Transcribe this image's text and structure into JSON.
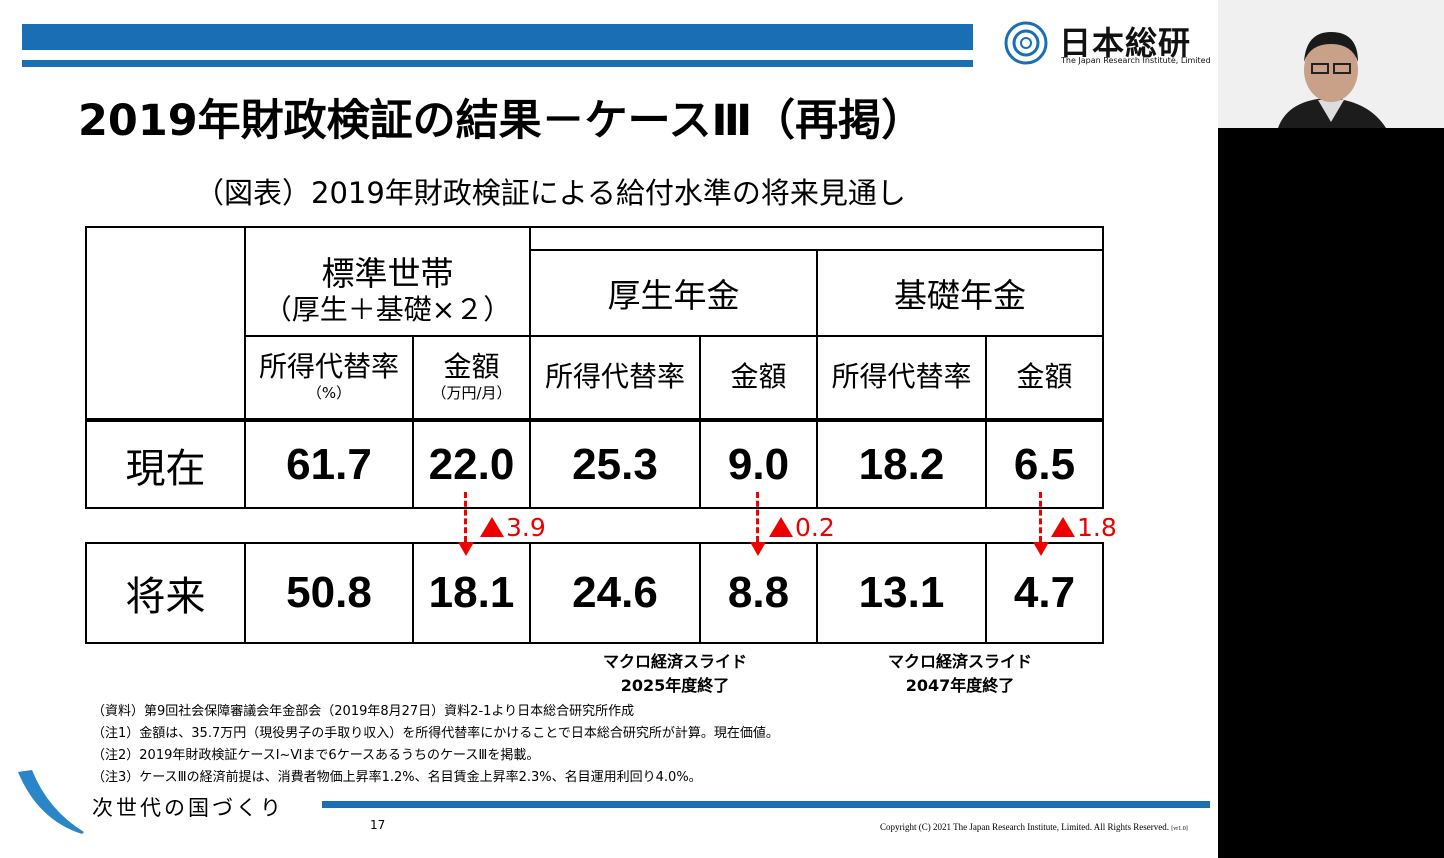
{
  "logo": {
    "name": "日本総研",
    "sub": "The Japan Research Institute, Limited",
    "brand_color": "#1a6eb3"
  },
  "title": "2019年財政検証の結果－ケースⅢ（再掲）",
  "subtitle": "（図表）2019年財政検証による給付水準の将来見通し",
  "table": {
    "group_headers": [
      {
        "line1": "標準世帯",
        "line2": "（厚生＋基礎×２）"
      },
      {
        "line1": "厚生年金"
      },
      {
        "line1": "基礎年金"
      }
    ],
    "col_headers": [
      {
        "label": "所得代替率",
        "unit": "（%）"
      },
      {
        "label": "金額",
        "unit": "（万円/月）"
      },
      {
        "label": "所得代替率"
      },
      {
        "label": "金額"
      },
      {
        "label": "所得代替率"
      },
      {
        "label": "金額"
      }
    ],
    "rows": [
      {
        "label": "現在",
        "values": [
          "61.7",
          "22.0",
          "25.3",
          "9.0",
          "18.2",
          "6.5"
        ]
      },
      {
        "label": "将来",
        "values": [
          "50.8",
          "18.1",
          "24.6",
          "8.8",
          "13.1",
          "4.7"
        ]
      }
    ],
    "deltas": [
      "3.9",
      "0.2",
      "1.8"
    ]
  },
  "macro": [
    {
      "l1": "マクロ経済スライド",
      "l2": "2025年度終了"
    },
    {
      "l1": "マクロ経済スライド",
      "l2": "2047年度終了"
    }
  ],
  "notes": [
    "（資料）第9回社会保障審議会年金部会（2019年8月27日）資料2-1より日本総合研究所作成",
    "（注1）金額は、35.7万円（現役男子の手取り収入）を所得代替率にかけることで日本総合研究所が計算。現在価値。",
    "（注2）2019年財政検証ケースⅠ~Ⅵまで6ケースあるうちのケースⅢを掲載。",
    "（注3）ケースⅢの経済前提は、消費者物価上昇率1.2%、名目賃金上昇率2.3%、名目運用利回り4.0%。"
  ],
  "footer": "次世代の国づくり",
  "page_number": "17",
  "copyright": "Copyright (C) 2021 The Japan Research Institute, Limited. All Rights Reserved.",
  "copyright_tag": "[vr1.0]"
}
